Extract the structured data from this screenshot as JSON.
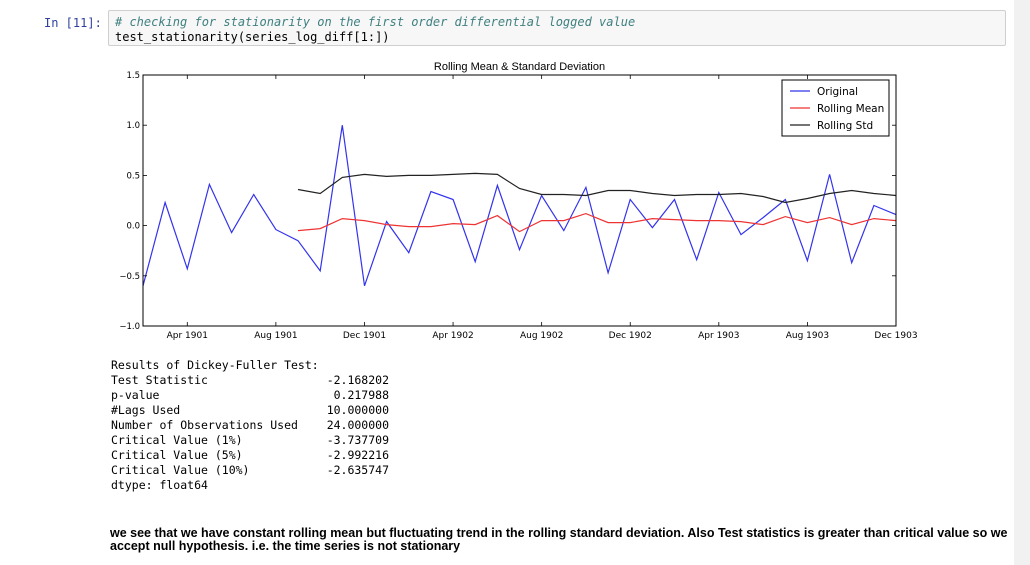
{
  "cell": {
    "prompt": "In [11]:",
    "comment": "# checking for stationarity on the first order differential logged value",
    "code": "test_stationarity(series_log_diff[1:])"
  },
  "chart_data": {
    "type": "line",
    "title": "Rolling Mean & Standard Deviation",
    "xlabel": "",
    "ylabel": "",
    "ylim": [
      -1.0,
      1.5
    ],
    "y_ticks": [
      "1.5",
      "1.0",
      "0.5",
      "0.0",
      "−0.5",
      "−1.0"
    ],
    "y_tick_values": [
      1.5,
      1.0,
      0.5,
      0.0,
      -0.5,
      -1.0
    ],
    "x_ticks": [
      "Apr 1901",
      "Aug 1901",
      "Dec 1901",
      "Apr 1902",
      "Aug 1902",
      "Dec 1902",
      "Apr 1903",
      "Aug 1903",
      "Dec 1903"
    ],
    "x_tick_values": [
      "1901-04",
      "1901-08",
      "1901-12",
      "1902-04",
      "1902-08",
      "1902-12",
      "1903-04",
      "1903-08",
      "1903-12"
    ],
    "x_start": "1901-02",
    "x_end": "1903-12",
    "legend": "top-right",
    "x": [
      "1901-02",
      "1901-03",
      "1901-04",
      "1901-05",
      "1901-06",
      "1901-07",
      "1901-08",
      "1901-09",
      "1901-10",
      "1901-11",
      "1901-12",
      "1902-01",
      "1902-02",
      "1902-03",
      "1902-04",
      "1902-05",
      "1902-06",
      "1902-07",
      "1902-08",
      "1902-09",
      "1902-10",
      "1902-11",
      "1902-12",
      "1903-01",
      "1903-02",
      "1903-03",
      "1903-04",
      "1903-05",
      "1903-06",
      "1903-07",
      "1903-08",
      "1903-09",
      "1903-10",
      "1903-11",
      "1903-12"
    ],
    "series": [
      {
        "name": "Original",
        "color": "#3333ee",
        "values": [
          -0.6,
          0.23,
          -0.43,
          0.41,
          -0.07,
          0.31,
          -0.04,
          -0.15,
          -0.45,
          1.0,
          -0.6,
          0.04,
          -0.27,
          0.34,
          0.26,
          -0.36,
          0.4,
          -0.24,
          0.3,
          -0.05,
          0.38,
          -0.47,
          0.26,
          -0.02,
          0.26,
          -0.34,
          0.33,
          -0.09,
          0.08,
          0.26,
          -0.35,
          0.51,
          -0.37,
          0.2,
          0.11
        ]
      },
      {
        "name": "Rolling Mean",
        "color": "#ee3333",
        "values": [
          null,
          null,
          null,
          null,
          null,
          null,
          null,
          -0.05,
          -0.03,
          0.07,
          0.05,
          0.01,
          -0.01,
          -0.01,
          0.02,
          0.01,
          0.1,
          -0.06,
          0.05,
          0.05,
          0.12,
          0.03,
          0.03,
          0.07,
          0.06,
          0.05,
          0.05,
          0.04,
          0.01,
          0.09,
          0.03,
          0.08,
          0.01,
          0.07,
          0.05
        ]
      },
      {
        "name": "Rolling Std",
        "color": "#222222",
        "values": [
          null,
          null,
          null,
          null,
          null,
          null,
          null,
          0.36,
          0.32,
          0.48,
          0.51,
          0.49,
          0.5,
          0.5,
          0.51,
          0.52,
          0.51,
          0.37,
          0.31,
          0.31,
          0.3,
          0.35,
          0.35,
          0.32,
          0.3,
          0.31,
          0.31,
          0.32,
          0.29,
          0.23,
          0.27,
          0.32,
          0.35,
          0.32,
          0.3
        ]
      }
    ]
  },
  "results": {
    "header": "Results of Dickey-Fuller Test:",
    "rows": [
      {
        "label": "Test Statistic",
        "value": "-2.168202"
      },
      {
        "label": "p-value",
        "value": "0.217988"
      },
      {
        "label": "#Lags Used",
        "value": "10.000000"
      },
      {
        "label": "Number of Observations Used",
        "value": "24.000000"
      },
      {
        "label": "Critical Value (1%)",
        "value": "-3.737709"
      },
      {
        "label": "Critical Value (5%)",
        "value": "-2.992216"
      },
      {
        "label": "Critical Value (10%)",
        "value": "-2.635747"
      }
    ],
    "dtype": "dtype: float64"
  },
  "markdown": {
    "conclusion": "we see that we have constant rolling mean but fluctuating trend in the rolling standard deviation. Also Test statistics is greater than critical value so we accept null hypothesis. i.e. the time series is not stationary"
  }
}
